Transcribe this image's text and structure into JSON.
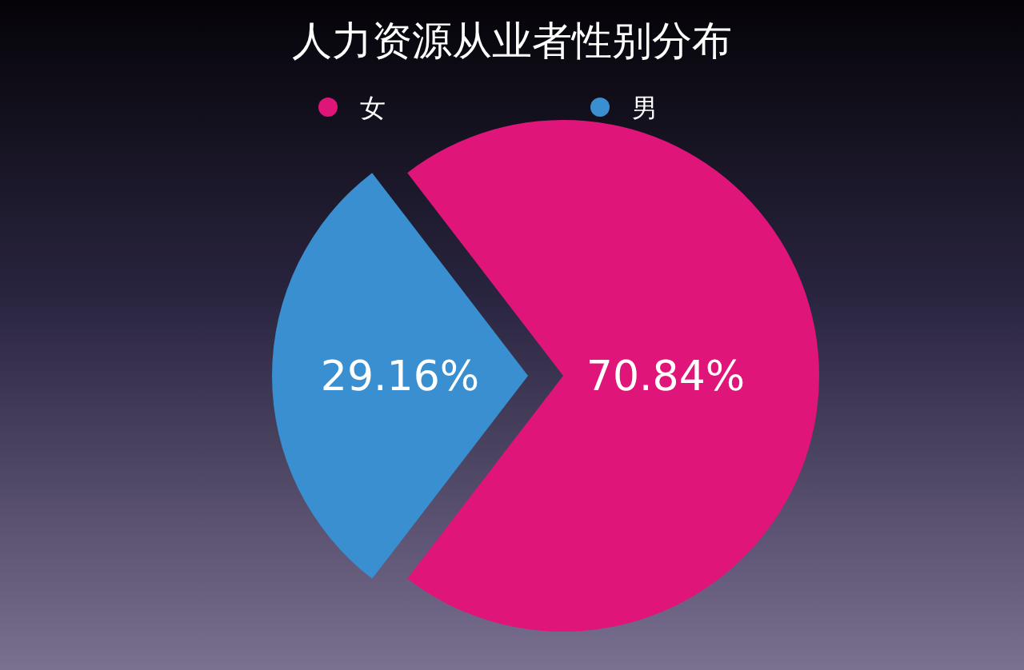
{
  "chart_data": {
    "type": "pie",
    "title": "人力资源从业者性别分布",
    "categories": [
      "女",
      "男"
    ],
    "values": [
      70.84,
      29.16
    ],
    "colors": [
      "#e0157a",
      "#3a8fd0"
    ],
    "value_labels": [
      "70.84%",
      "29.16%"
    ],
    "legend": "top"
  }
}
